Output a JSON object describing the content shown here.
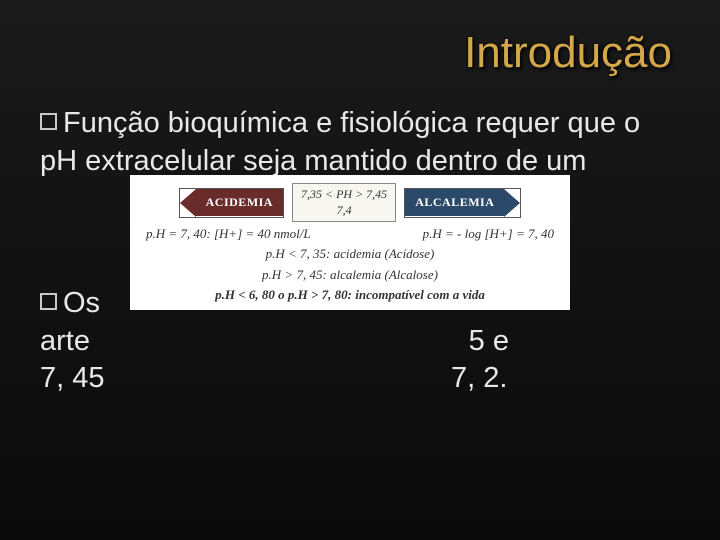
{
  "title": "Introdução",
  "bullets": {
    "b1_prefix": "Função",
    "b1_rest": " bioquímica e fisiológica requer que o pH extracelular seja mantido dentro de um",
    "b2_prefix": "Os",
    "b2_l2": "arte                                               5 e",
    "b2_l3": "7, 45                                           7, 2."
  },
  "diagram": {
    "left_label": "ACIDEMIA",
    "left_color": "#6a2b2b",
    "right_label": "ALCALEMIA",
    "right_color": "#2b4a6a",
    "center_top": "7,35 < PH > 7,45",
    "center_bottom": "7,4",
    "split_left": "p.H = 7, 40: [H+]  = 40 nmol/L",
    "split_right": "p.H = - log [H+] = 7, 40",
    "line1": "p.H < 7, 35: acidemia (Acidose)",
    "line2": "p.H > 7, 45: alcalemia (Alcalose)",
    "line3": "p.H < 6, 80 o p.H > 7, 80: incompatível com a vida"
  }
}
